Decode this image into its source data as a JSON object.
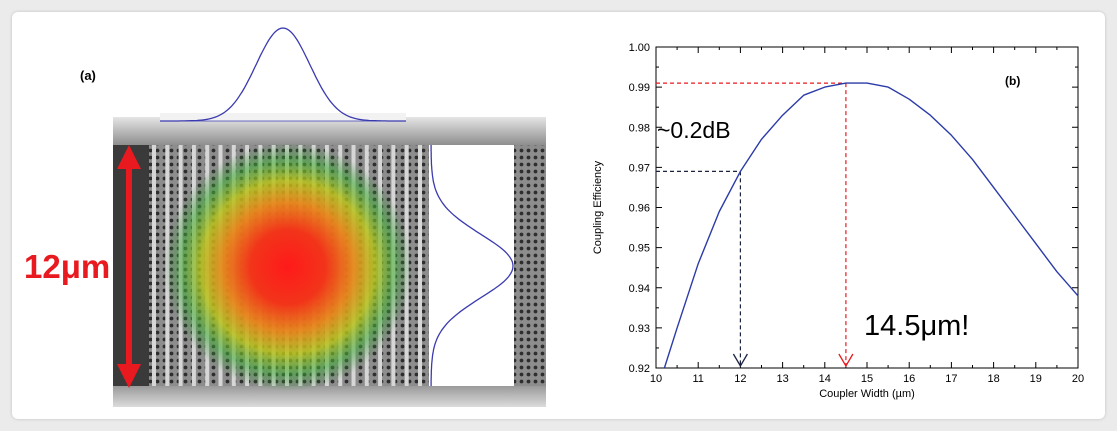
{
  "panel_a": {
    "label": "(a)",
    "dimension_label": "12μm",
    "arrow_color": "#e8191f",
    "mode_colors": [
      "#ff1a1a",
      "#f06a1a",
      "#c8c81a",
      "#3fae36"
    ],
    "profile_color": "#3b3bb0"
  },
  "panel_b": {
    "label": "(b)",
    "annotations": {
      "loss": "~0.2dB",
      "optimum": "14.5μm!"
    },
    "annotation_x": {
      "loss": 12,
      "optimum": 14.5
    },
    "annotation_y": {
      "loss": 0.969,
      "optimum": 0.991
    },
    "colors": {
      "curve": "#2b3ba8",
      "red_guide": "#e8191f",
      "dark_guide": "#1c2340"
    }
  },
  "chart_data": {
    "type": "line",
    "title": "",
    "xlabel": "Coupler Width (µm)",
    "ylabel": "Coupling Efficiency",
    "xlim": [
      10,
      20
    ],
    "ylim": [
      0.92,
      1.0
    ],
    "xticks": [
      10,
      11,
      12,
      13,
      14,
      15,
      16,
      17,
      18,
      19,
      20
    ],
    "yticks": [
      "0.92",
      "0.93",
      "0.94",
      "0.95",
      "0.96",
      "0.97",
      "0.98",
      "0.99",
      "1.00"
    ],
    "series": [
      {
        "x": [
          10.2,
          10.5,
          11,
          11.5,
          12,
          12.5,
          13,
          13.5,
          14,
          14.5,
          15,
          15.5,
          16,
          16.5,
          17,
          17.5,
          18,
          18.5,
          19,
          19.5,
          20
        ],
        "values": [
          0.92,
          0.93,
          0.946,
          0.959,
          0.969,
          0.977,
          0.983,
          0.988,
          0.99,
          0.991,
          0.991,
          0.99,
          0.987,
          0.983,
          0.978,
          0.972,
          0.965,
          0.958,
          0.951,
          0.944,
          0.938
        ]
      }
    ],
    "grid": false
  }
}
